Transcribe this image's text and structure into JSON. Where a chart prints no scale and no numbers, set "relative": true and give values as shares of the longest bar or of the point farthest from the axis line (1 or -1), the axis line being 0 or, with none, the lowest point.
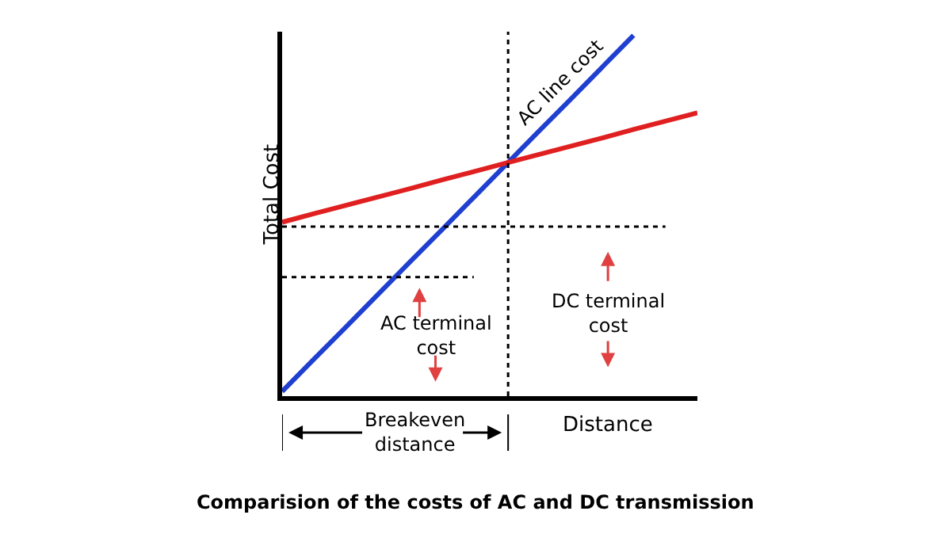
{
  "chart_data": {
    "type": "line",
    "title": "Comparision of the costs of AC and DC transmission",
    "xlabel": "Distance",
    "ylabel": "Total Cost",
    "relative": true,
    "categories": [
      null,
      null,
      null,
      null,
      null,
      null,
      null,
      null,
      null,
      null,
      null,
      null,
      null,
      null
    ],
    "marker": "none",
    "line_style": "solid",
    "series": [
      {
        "color": "#1f3fd0",
        "values": [
          0.013,
          0.103,
          0.192,
          0.282,
          0.372,
          0.461,
          0.551,
          0.641,
          0.731,
          0.82,
          0.91,
          1.0,
          null,
          null
        ]
      },
      {
        "color": "#e02020",
        "values": [
          0.482,
          0.506,
          0.529,
          0.552,
          0.575,
          0.599,
          0.622,
          0.646,
          0.669,
          0.692,
          0.715,
          0.739,
          0.762,
          0.785
        ]
      },
      {
        "color": "#000000",
        "line_style": "dotted",
        "values": [
          0.47,
          0.47,
          0.47,
          0.47,
          0.47,
          0.47,
          0.47,
          0.47,
          0.47,
          0.47,
          0.47,
          0.47,
          0.47,
          null
        ]
      },
      {
        "color": "#000000",
        "line_style": "dotted",
        "values": [
          0.33,
          0.33,
          0.33,
          0.33,
          0.33,
          0.33,
          0.33,
          null,
          null,
          null,
          null,
          null,
          null,
          null
        ]
      }
    ],
    "annotations": [
      "AC line cost",
      "AC terminal cost",
      "DC terminal cost",
      "Breakeven distance"
    ]
  }
}
